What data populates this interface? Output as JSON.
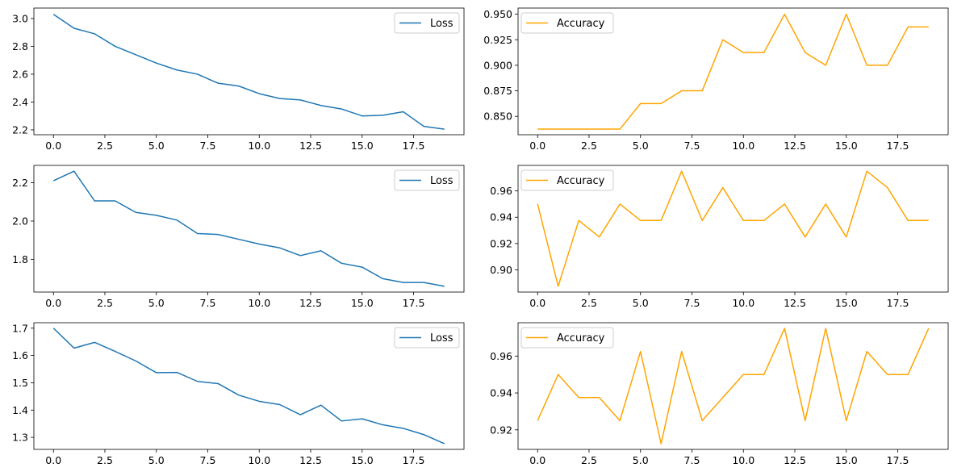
{
  "chart_data": [
    {
      "type": "line",
      "x": [
        0,
        1,
        2,
        3,
        4,
        5,
        6,
        7,
        8,
        9,
        10,
        11,
        12,
        13,
        14,
        15,
        16,
        17,
        18,
        19
      ],
      "series": [
        {
          "name": "Loss",
          "color": "#1f77b4",
          "values": [
            3.03,
            2.93,
            2.89,
            2.8,
            2.74,
            2.68,
            2.63,
            2.6,
            2.535,
            2.515,
            2.46,
            2.425,
            2.415,
            2.375,
            2.35,
            2.3,
            2.305,
            2.33,
            2.225,
            2.205
          ]
        }
      ],
      "xlim": [
        -0.95,
        19.95
      ],
      "ylim": [
        2.165,
        3.075
      ],
      "xticks": [
        0,
        2.5,
        5,
        7.5,
        10,
        12.5,
        15,
        17.5
      ],
      "xtick_labels": [
        "0.0",
        "2.5",
        "5.0",
        "7.5",
        "10.0",
        "12.5",
        "15.0",
        "17.5"
      ],
      "yticks": [
        2.2,
        2.4,
        2.6,
        2.8,
        3.0
      ],
      "ytick_labels": [
        "2.2",
        "2.4",
        "2.6",
        "2.8",
        "3.0"
      ],
      "legend": "top-right",
      "grid": false
    },
    {
      "type": "line",
      "x": [
        0,
        1,
        2,
        3,
        4,
        5,
        6,
        7,
        8,
        9,
        10,
        11,
        12,
        13,
        14,
        15,
        16,
        17,
        18,
        19
      ],
      "series": [
        {
          "name": "Accuracy",
          "color": "#ffa500",
          "values": [
            0.8375,
            0.8375,
            0.8375,
            0.8375,
            0.8375,
            0.8625,
            0.8625,
            0.875,
            0.875,
            0.925,
            0.9125,
            0.9125,
            0.95,
            0.9125,
            0.9,
            0.95,
            0.9,
            0.9,
            0.9375,
            0.9375
          ]
        }
      ],
      "xlim": [
        -0.95,
        19.95
      ],
      "ylim": [
        0.832,
        0.956
      ],
      "xticks": [
        0,
        2.5,
        5,
        7.5,
        10,
        12.5,
        15,
        17.5
      ],
      "xtick_labels": [
        "0.0",
        "2.5",
        "5.0",
        "7.5",
        "10.0",
        "12.5",
        "15.0",
        "17.5"
      ],
      "yticks": [
        0.85,
        0.875,
        0.9,
        0.925,
        0.95
      ],
      "ytick_labels": [
        "0.850",
        "0.875",
        "0.900",
        "0.925",
        "0.950"
      ],
      "legend": "top-left",
      "grid": false
    },
    {
      "type": "line",
      "x": [
        0,
        1,
        2,
        3,
        4,
        5,
        6,
        7,
        8,
        9,
        10,
        11,
        12,
        13,
        14,
        15,
        16,
        17,
        18,
        19
      ],
      "series": [
        {
          "name": "Loss",
          "color": "#1f77b4",
          "values": [
            2.21,
            2.26,
            2.105,
            2.105,
            2.045,
            2.03,
            2.005,
            1.935,
            1.93,
            1.905,
            1.88,
            1.86,
            1.82,
            1.845,
            1.78,
            1.76,
            1.7,
            1.68,
            1.68,
            1.66
          ]
        }
      ],
      "xlim": [
        -0.95,
        19.95
      ],
      "ylim": [
        1.63,
        2.29
      ],
      "xticks": [
        0,
        2.5,
        5,
        7.5,
        10,
        12.5,
        15,
        17.5
      ],
      "xtick_labels": [
        "0.0",
        "2.5",
        "5.0",
        "7.5",
        "10.0",
        "12.5",
        "15.0",
        "17.5"
      ],
      "yticks": [
        1.8,
        2.0,
        2.2
      ],
      "ytick_labels": [
        "1.8",
        "2.0",
        "2.2"
      ],
      "legend": "top-right",
      "grid": false
    },
    {
      "type": "line",
      "x": [
        0,
        1,
        2,
        3,
        4,
        5,
        6,
        7,
        8,
        9,
        10,
        11,
        12,
        13,
        14,
        15,
        16,
        17,
        18,
        19
      ],
      "series": [
        {
          "name": "Accuracy",
          "color": "#ffa500",
          "values": [
            0.95,
            0.8875,
            0.9375,
            0.925,
            0.95,
            0.9375,
            0.9375,
            0.975,
            0.9375,
            0.9625,
            0.9375,
            0.9375,
            0.95,
            0.925,
            0.95,
            0.925,
            0.975,
            0.9625,
            0.9375,
            0.9375
          ]
        }
      ],
      "xlim": [
        -0.95,
        19.95
      ],
      "ylim": [
        0.8831,
        0.9794
      ],
      "xticks": [
        0,
        2.5,
        5,
        7.5,
        10,
        12.5,
        15,
        17.5
      ],
      "xtick_labels": [
        "0.0",
        "2.5",
        "5.0",
        "7.5",
        "10.0",
        "12.5",
        "15.0",
        "17.5"
      ],
      "yticks": [
        0.9,
        0.92,
        0.94,
        0.96
      ],
      "ytick_labels": [
        "0.90",
        "0.92",
        "0.94",
        "0.96"
      ],
      "legend": "top-left",
      "grid": false
    },
    {
      "type": "line",
      "x": [
        0,
        1,
        2,
        3,
        4,
        5,
        6,
        7,
        8,
        9,
        10,
        11,
        12,
        13,
        14,
        15,
        16,
        17,
        18,
        19
      ],
      "series": [
        {
          "name": "Loss",
          "color": "#1f77b4",
          "values": [
            1.7,
            1.627,
            1.648,
            1.615,
            1.58,
            1.537,
            1.538,
            1.505,
            1.497,
            1.455,
            1.432,
            1.42,
            1.383,
            1.418,
            1.36,
            1.368,
            1.346,
            1.333,
            1.31,
            1.277
          ]
        }
      ],
      "xlim": [
        -0.95,
        19.95
      ],
      "ylim": [
        1.256,
        1.72
      ],
      "xticks": [
        0,
        2.5,
        5,
        7.5,
        10,
        12.5,
        15,
        17.5
      ],
      "xtick_labels": [
        "0.0",
        "2.5",
        "5.0",
        "7.5",
        "10.0",
        "12.5",
        "15.0",
        "17.5"
      ],
      "yticks": [
        1.3,
        1.4,
        1.5,
        1.6,
        1.7
      ],
      "ytick_labels": [
        "1.3",
        "1.4",
        "1.5",
        "1.6",
        "1.7"
      ],
      "legend": "top-right",
      "grid": false
    },
    {
      "type": "line",
      "x": [
        0,
        1,
        2,
        3,
        4,
        5,
        6,
        7,
        8,
        9,
        10,
        11,
        12,
        13,
        14,
        15,
        16,
        17,
        18,
        19
      ],
      "series": [
        {
          "name": "Accuracy",
          "color": "#ffa500",
          "values": [
            0.925,
            0.95,
            0.9375,
            0.9375,
            0.925,
            0.9625,
            0.9125,
            0.9625,
            0.925,
            0.9375,
            0.95,
            0.95,
            0.975,
            0.925,
            0.975,
            0.925,
            0.9625,
            0.95,
            0.95,
            0.975
          ]
        }
      ],
      "xlim": [
        -0.95,
        19.95
      ],
      "ylim": [
        0.9094,
        0.9781
      ],
      "xticks": [
        0,
        2.5,
        5,
        7.5,
        10,
        12.5,
        15,
        17.5
      ],
      "xtick_labels": [
        "0.0",
        "2.5",
        "5.0",
        "7.5",
        "10.0",
        "12.5",
        "15.0",
        "17.5"
      ],
      "yticks": [
        0.92,
        0.94,
        0.96
      ],
      "ytick_labels": [
        "0.92",
        "0.94",
        "0.96"
      ],
      "legend": "top-left",
      "grid": false
    }
  ]
}
